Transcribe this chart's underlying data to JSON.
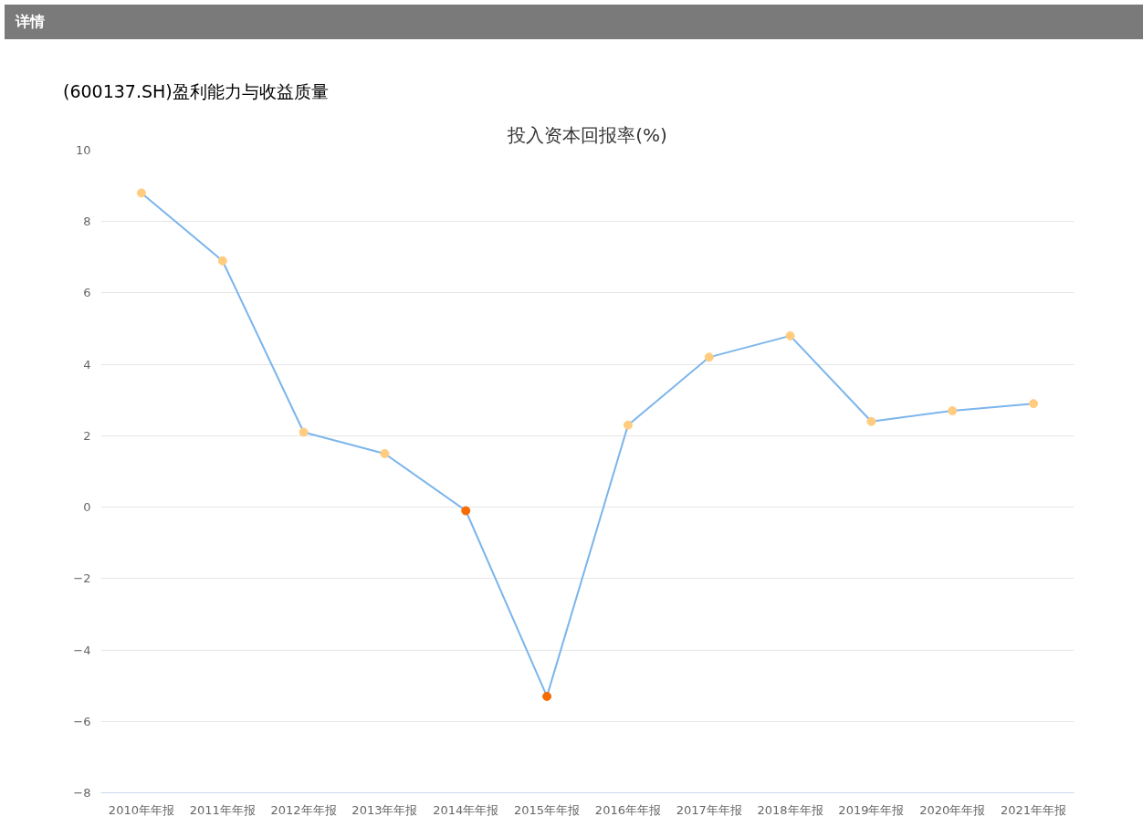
{
  "chart_data": {
    "type": "line",
    "title": "投入资本回报率(%)",
    "subtitle": "(600137.SH)盈利能力与收益质量",
    "annotations": [
      "详情"
    ],
    "categories": [
      "2010年年报",
      "2011年年报",
      "2012年年报",
      "2013年年报",
      "2014年年报",
      "2015年年报",
      "2016年年报",
      "2017年年报",
      "2018年年报",
      "2019年年报",
      "2020年年报",
      "2021年年报"
    ],
    "series": [
      {
        "color": "#7cb5ec",
        "values": [
          8.8,
          6.9,
          2.1,
          1.5,
          -0.1,
          -5.3,
          2.3,
          4.2,
          4.8,
          2.4,
          2.7,
          2.9
        ],
        "colors": [
          "#ffcc80",
          "#ffcc80",
          "#ffcc80",
          "#ffcc80",
          "#f76b00",
          "#f76b00",
          "#ffcc80",
          "#ffcc80",
          "#ffcc80",
          "#ffcc80",
          "#ffcc80",
          "#ffcc80"
        ]
      }
    ],
    "ylim": [
      -8,
      10
    ],
    "yticks": [
      -8,
      -6,
      -4,
      -2,
      0,
      2,
      4,
      6,
      8,
      10
    ],
    "grid": "y",
    "marker": "circle",
    "line_style": "solid"
  }
}
